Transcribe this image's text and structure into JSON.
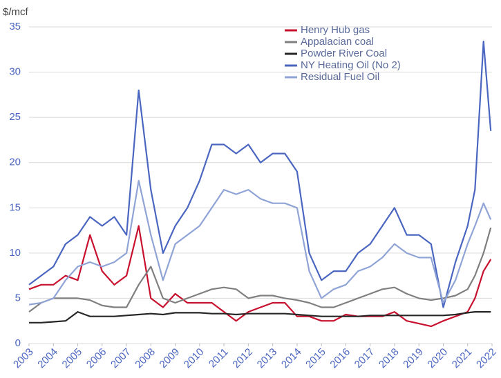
{
  "chart_data": {
    "type": "line",
    "y_label": "$/mcf",
    "x": [
      2003,
      2003.5,
      2004,
      2004.5,
      2005,
      2005.5,
      2006,
      2006.5,
      2007,
      2007.5,
      2008,
      2008.5,
      2009,
      2009.5,
      2010,
      2010.5,
      2011,
      2011.5,
      2012,
      2012.5,
      2013,
      2013.5,
      2014,
      2014.5,
      2015,
      2015.5,
      2016,
      2016.5,
      2017,
      2017.5,
      2018,
      2018.5,
      2019,
      2019.5,
      2020,
      2020.5,
      2021,
      2021.3,
      2021.65,
      2021.95
    ],
    "series": [
      {
        "name": "Henry Hub gas",
        "color": "#c8102e",
        "values": [
          6.0,
          6.5,
          6.5,
          7.5,
          7.0,
          12,
          8,
          6.5,
          7.5,
          13,
          5,
          4,
          5.5,
          4.5,
          4.5,
          4.5,
          3.5,
          2.5,
          3.5,
          4,
          4.5,
          4.5,
          3,
          3,
          2.5,
          2.5,
          3.2,
          3,
          3,
          3,
          3.5,
          2.5,
          2.2,
          1.9,
          2.5,
          3,
          3.5,
          5,
          8,
          9.3
        ]
      },
      {
        "name": "Appalacian coal",
        "color": "#7f7f7f",
        "values": [
          3.5,
          4.5,
          5,
          5,
          5,
          4.8,
          4.2,
          4,
          4,
          6.5,
          8.5,
          5,
          4.5,
          5,
          5.5,
          6,
          6.2,
          6,
          5,
          5.3,
          5.3,
          5,
          4.8,
          4.5,
          4,
          4,
          4.5,
          5,
          5.5,
          6,
          6.2,
          5.5,
          5,
          4.8,
          5,
          5.3,
          6,
          7.5,
          10,
          12.8
        ]
      },
      {
        "name": "Powder River Coal",
        "color": "#262626",
        "values": [
          2.3,
          2.3,
          2.4,
          2.5,
          3.5,
          3.0,
          3.0,
          3.0,
          3.1,
          3.2,
          3.3,
          3.2,
          3.4,
          3.4,
          3.4,
          3.3,
          3.3,
          3.2,
          3.3,
          3.3,
          3.3,
          3.3,
          3.2,
          3.1,
          3.0,
          3.0,
          3.0,
          3.0,
          3.1,
          3.1,
          3.1,
          3.1,
          3.1,
          3.1,
          3.1,
          3.2,
          3.4,
          3.5,
          3.5,
          3.5
        ]
      },
      {
        "name": "NY Heating Oil (No 2)",
        "color": "#4a66c0",
        "values": [
          6.5,
          7.5,
          8.5,
          11,
          12,
          14,
          13,
          14,
          12,
          28,
          17,
          10,
          13,
          15,
          18,
          22,
          22,
          21,
          22,
          20,
          21,
          21,
          19,
          10,
          7,
          8,
          8,
          10,
          11,
          13,
          15,
          12,
          12,
          11,
          4,
          9,
          13,
          17,
          33.4,
          23.5
        ]
      },
      {
        "name": "Residual Fuel Oil",
        "color": "#8fa3d6",
        "values": [
          4.3,
          4.5,
          5,
          7,
          8.5,
          9,
          8.5,
          9,
          10,
          18,
          12,
          7,
          11,
          12,
          13,
          15,
          17,
          16.5,
          17,
          16,
          15.5,
          15.5,
          15,
          8,
          5,
          6,
          6.5,
          8,
          8.5,
          9.5,
          11,
          10,
          9.5,
          9.5,
          4.5,
          7,
          11,
          13,
          15.5,
          13.7
        ]
      }
    ],
    "xlim": [
      2003,
      2022
    ],
    "xticks": [
      2003,
      2004,
      2005,
      2006,
      2007,
      2008,
      2009,
      2010,
      2011,
      2012,
      2013,
      2014,
      2015,
      2016,
      2017,
      2018,
      2019,
      2020,
      2021,
      2022
    ],
    "ylim": [
      0,
      35
    ],
    "yticks": [
      0,
      5,
      10,
      15,
      20,
      25,
      30,
      35
    ],
    "grid": true
  }
}
